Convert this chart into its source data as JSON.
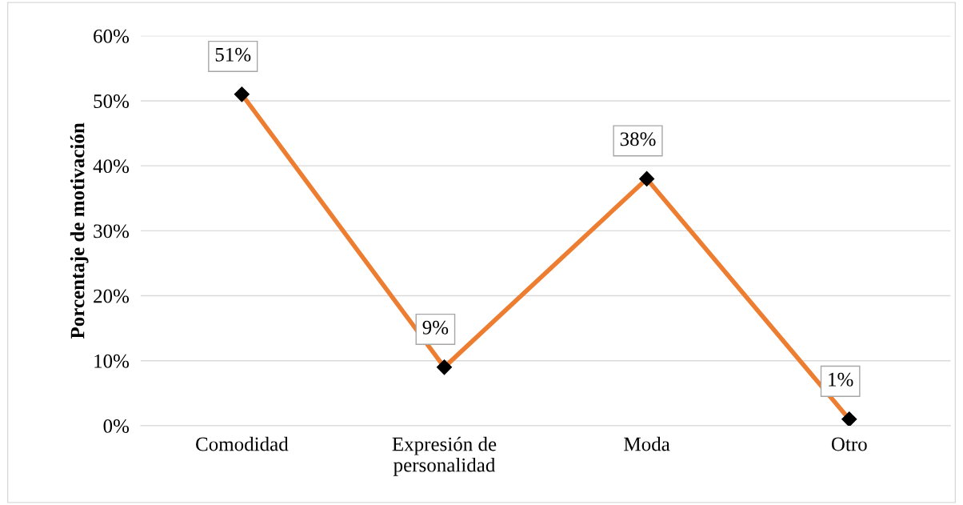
{
  "chart_data": {
    "type": "line",
    "ylabel": "Porcentaje de motivación",
    "categories": [
      "Comodidad",
      "Expresión de\npersonalidad",
      "Moda",
      "Otro"
    ],
    "series": [
      {
        "color": "#ed7d31",
        "values": [
          51,
          9,
          38,
          1
        ],
        "value_labels": [
          "51%",
          "9%",
          "38%",
          "1%"
        ]
      }
    ],
    "ylim": [
      0,
      60
    ],
    "yticks": [
      {
        "value": 0,
        "label": "0%"
      },
      {
        "value": 10,
        "label": "10%"
      },
      {
        "value": 20,
        "label": "20%"
      },
      {
        "value": 30,
        "label": "30%"
      },
      {
        "value": 40,
        "label": "40%"
      },
      {
        "value": 50,
        "label": "50%"
      },
      {
        "value": 60,
        "label": "60%"
      }
    ],
    "grid": "y",
    "marker": "diamond",
    "line_style": "solid"
  }
}
